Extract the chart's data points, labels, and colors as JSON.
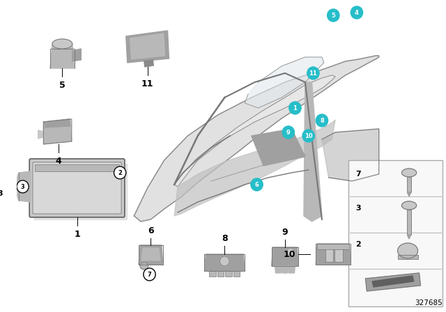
{
  "diagram_number": "327685",
  "bg": "#ffffff",
  "teal": "#26BEC9",
  "black": "#000000",
  "gray1": "#8a8a8a",
  "gray2": "#a0a0a0",
  "gray3": "#b8b8b8",
  "gray4": "#c8c8c8",
  "gray5": "#d8d8d8",
  "gray6": "#e8e8e8",
  "gray_dark": "#606060",
  "gray_line": "#777777",
  "panel_bg": "#f8f8f8",
  "car_body": "#dcdcdc",
  "car_inner": "#c8c8c8",
  "car_line": "#888888",
  "fig_w": 6.4,
  "fig_h": 4.48,
  "dpi": 100
}
